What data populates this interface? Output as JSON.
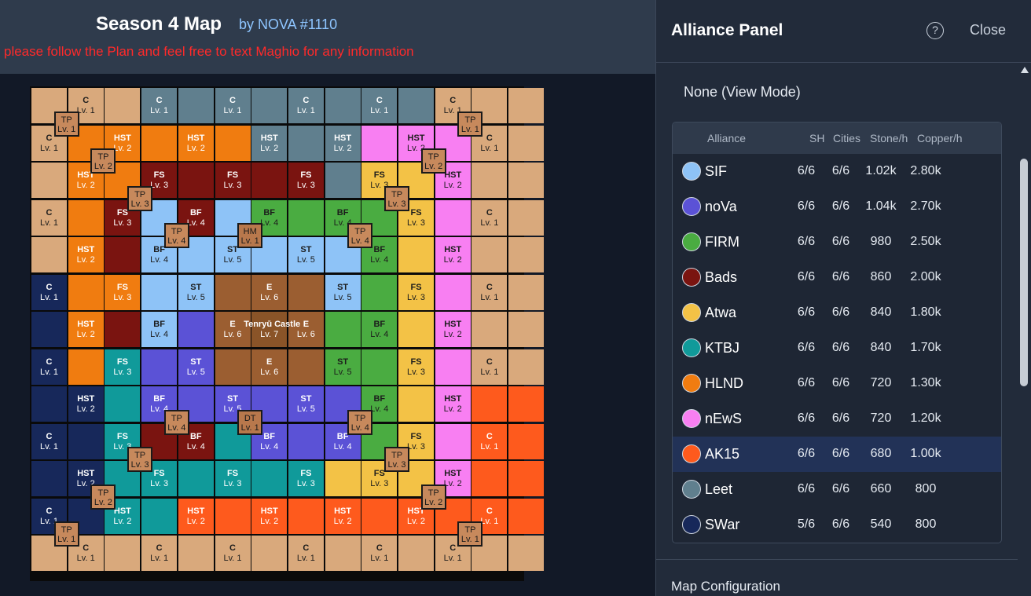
{
  "header": {
    "title": "Season 4 Map",
    "author": "by NOVA #1110",
    "notice": "please follow the Plan and feel free to text Maghio for any information"
  },
  "map": {
    "palette": {
      "C": "#d9a97c",
      "SIF": "#8ec3f7",
      "noVa": "#5b52d6",
      "FIRM": "#4aac41",
      "Bads": "#7a1410",
      "Atwa": "#f3c246",
      "KTBJ": "#109a9a",
      "HLND": "#f07c10",
      "nEwS": "#f87ff2",
      "AK15": "#fe5a1d",
      "Leet": "#607f8e",
      "SWar": "#17285a",
      "Dist": "#9b5e31",
      "Cast": "#8a5428"
    },
    "owners": [
      [
        "C",
        "C",
        "C",
        "Leet",
        "Leet",
        "Leet",
        "Leet",
        "Leet",
        "Leet",
        "Leet",
        "Leet",
        "C",
        "C",
        "C"
      ],
      [
        "C",
        "HLND",
        "HLND",
        "HLND",
        "HLND",
        "HLND",
        "Leet",
        "Leet",
        "Leet",
        "nEwS",
        "nEwS",
        "nEwS",
        "C",
        "C"
      ],
      [
        "C",
        "HLND",
        "HLND",
        "Bads",
        "Bads",
        "Bads",
        "Bads",
        "Bads",
        "Leet",
        "Atwa",
        "Atwa",
        "nEwS",
        "C",
        "C"
      ],
      [
        "C",
        "HLND",
        "Bads",
        "SIF",
        "Bads",
        "SIF",
        "FIRM",
        "FIRM",
        "FIRM",
        "FIRM",
        "Atwa",
        "nEwS",
        "C",
        "C"
      ],
      [
        "C",
        "HLND",
        "Bads",
        "SIF",
        "SIF",
        "SIF",
        "SIF",
        "SIF",
        "SIF",
        "FIRM",
        "Atwa",
        "nEwS",
        "C",
        "C"
      ],
      [
        "SWar",
        "HLND",
        "HLND",
        "SIF",
        "SIF",
        "Dist",
        "Dist",
        "Dist",
        "SIF",
        "FIRM",
        "Atwa",
        "nEwS",
        "C",
        "C"
      ],
      [
        "SWar",
        "HLND",
        "Bads",
        "SIF",
        "noVa",
        "Dist",
        "Cast",
        "Dist",
        "FIRM",
        "FIRM",
        "Atwa",
        "nEwS",
        "C",
        "C"
      ],
      [
        "SWar",
        "HLND",
        "KTBJ",
        "noVa",
        "noVa",
        "Dist",
        "Dist",
        "Dist",
        "FIRM",
        "FIRM",
        "Atwa",
        "nEwS",
        "C",
        "C"
      ],
      [
        "SWar",
        "SWar",
        "KTBJ",
        "noVa",
        "noVa",
        "noVa",
        "noVa",
        "noVa",
        "noVa",
        "FIRM",
        "Atwa",
        "nEwS",
        "AK15",
        "AK15"
      ],
      [
        "SWar",
        "SWar",
        "KTBJ",
        "Bads",
        "Bads",
        "KTBJ",
        "noVa",
        "noVa",
        "noVa",
        "FIRM",
        "Atwa",
        "nEwS",
        "AK15",
        "AK15"
      ],
      [
        "SWar",
        "SWar",
        "KTBJ",
        "KTBJ",
        "KTBJ",
        "KTBJ",
        "KTBJ",
        "KTBJ",
        "Atwa",
        "Atwa",
        "Atwa",
        "nEwS",
        "AK15",
        "AK15"
      ],
      [
        "SWar",
        "SWar",
        "KTBJ",
        "KTBJ",
        "AK15",
        "AK15",
        "AK15",
        "AK15",
        "AK15",
        "AK15",
        "AK15",
        "AK15",
        "AK15",
        "AK15"
      ],
      [
        "C",
        "C",
        "C",
        "C",
        "C",
        "C",
        "C",
        "C",
        "C",
        "C",
        "C",
        "C",
        "C",
        "C"
      ]
    ],
    "labels": [
      {
        "r": 0,
        "c": 1,
        "t": "C",
        "l": "Lv. 1"
      },
      {
        "r": 0,
        "c": 3,
        "t": "C",
        "l": "Lv. 1"
      },
      {
        "r": 0,
        "c": 5,
        "t": "C",
        "l": "Lv. 1"
      },
      {
        "r": 0,
        "c": 7,
        "t": "C",
        "l": "Lv. 1"
      },
      {
        "r": 0,
        "c": 9,
        "t": "C",
        "l": "Lv. 1"
      },
      {
        "r": 0,
        "c": 11,
        "t": "C",
        "l": "Lv. 1"
      },
      {
        "r": 1,
        "c": 0,
        "t": "C",
        "l": "Lv. 1"
      },
      {
        "r": 1,
        "c": 2,
        "t": "HST",
        "l": "Lv. 2"
      },
      {
        "r": 1,
        "c": 4,
        "t": "HST",
        "l": "Lv. 2"
      },
      {
        "r": 1,
        "c": 6,
        "t": "HST",
        "l": "Lv. 2"
      },
      {
        "r": 1,
        "c": 8,
        "t": "HST",
        "l": "Lv. 2"
      },
      {
        "r": 1,
        "c": 10,
        "t": "HST",
        "l": "Lv. 2"
      },
      {
        "r": 1,
        "c": 12,
        "t": "C",
        "l": "Lv. 1"
      },
      {
        "r": 2,
        "c": 1,
        "t": "HST",
        "l": "Lv. 2"
      },
      {
        "r": 2,
        "c": 3,
        "t": "FS",
        "l": "Lv. 3"
      },
      {
        "r": 2,
        "c": 5,
        "t": "FS",
        "l": "Lv. 3"
      },
      {
        "r": 2,
        "c": 7,
        "t": "FS",
        "l": "Lv. 3"
      },
      {
        "r": 2,
        "c": 9,
        "t": "FS",
        "l": "Lv. 3"
      },
      {
        "r": 2,
        "c": 11,
        "t": "HST",
        "l": "Lv. 2"
      },
      {
        "r": 3,
        "c": 0,
        "t": "C",
        "l": "Lv. 1"
      },
      {
        "r": 3,
        "c": 2,
        "t": "FS",
        "l": "Lv. 3"
      },
      {
        "r": 3,
        "c": 4,
        "t": "BF",
        "l": "Lv. 4"
      },
      {
        "r": 3,
        "c": 6,
        "t": "BF",
        "l": "Lv. 4"
      },
      {
        "r": 3,
        "c": 8,
        "t": "BF",
        "l": "Lv. 4"
      },
      {
        "r": 3,
        "c": 10,
        "t": "FS",
        "l": "Lv. 3"
      },
      {
        "r": 3,
        "c": 12,
        "t": "C",
        "l": "Lv. 1"
      },
      {
        "r": 4,
        "c": 1,
        "t": "HST",
        "l": "Lv. 2"
      },
      {
        "r": 4,
        "c": 3,
        "t": "BF",
        "l": "Lv. 4"
      },
      {
        "r": 4,
        "c": 5,
        "t": "ST",
        "l": "Lv. 5"
      },
      {
        "r": 4,
        "c": 7,
        "t": "ST",
        "l": "Lv. 5"
      },
      {
        "r": 4,
        "c": 9,
        "t": "BF",
        "l": "Lv. 4"
      },
      {
        "r": 4,
        "c": 11,
        "t": "HST",
        "l": "Lv. 2"
      },
      {
        "r": 5,
        "c": 0,
        "t": "C",
        "l": "Lv. 1"
      },
      {
        "r": 5,
        "c": 2,
        "t": "FS",
        "l": "Lv. 3"
      },
      {
        "r": 5,
        "c": 4,
        "t": "ST",
        "l": "Lv. 5"
      },
      {
        "r": 5,
        "c": 6,
        "t": "E",
        "l": "Lv. 6"
      },
      {
        "r": 5,
        "c": 8,
        "t": "ST",
        "l": "Lv. 5"
      },
      {
        "r": 5,
        "c": 10,
        "t": "FS",
        "l": "Lv. 3"
      },
      {
        "r": 5,
        "c": 12,
        "t": "C",
        "l": "Lv. 1"
      },
      {
        "r": 6,
        "c": 1,
        "t": "HST",
        "l": "Lv. 2"
      },
      {
        "r": 6,
        "c": 3,
        "t": "BF",
        "l": "Lv. 4"
      },
      {
        "r": 6,
        "c": 5,
        "t": "E",
        "l": "Lv. 6"
      },
      {
        "r": 6,
        "c": 6,
        "t": "Tenryū Castle",
        "l": "Lv. 7"
      },
      {
        "r": 6,
        "c": 7,
        "t": "E",
        "l": "Lv. 6"
      },
      {
        "r": 6,
        "c": 9,
        "t": "BF",
        "l": "Lv. 4"
      },
      {
        "r": 6,
        "c": 11,
        "t": "HST",
        "l": "Lv. 2"
      },
      {
        "r": 7,
        "c": 0,
        "t": "C",
        "l": "Lv. 1"
      },
      {
        "r": 7,
        "c": 2,
        "t": "FS",
        "l": "Lv. 3"
      },
      {
        "r": 7,
        "c": 4,
        "t": "ST",
        "l": "Lv. 5"
      },
      {
        "r": 7,
        "c": 6,
        "t": "E",
        "l": "Lv. 6"
      },
      {
        "r": 7,
        "c": 8,
        "t": "ST",
        "l": "Lv. 5"
      },
      {
        "r": 7,
        "c": 10,
        "t": "FS",
        "l": "Lv. 3"
      },
      {
        "r": 7,
        "c": 12,
        "t": "C",
        "l": "Lv. 1"
      },
      {
        "r": 8,
        "c": 1,
        "t": "HST",
        "l": "Lv. 2"
      },
      {
        "r": 8,
        "c": 3,
        "t": "BF",
        "l": "Lv. 4"
      },
      {
        "r": 8,
        "c": 5,
        "t": "ST",
        "l": "Lv. 5"
      },
      {
        "r": 8,
        "c": 7,
        "t": "ST",
        "l": "Lv. 5"
      },
      {
        "r": 8,
        "c": 9,
        "t": "BF",
        "l": "Lv. 4"
      },
      {
        "r": 8,
        "c": 11,
        "t": "HST",
        "l": "Lv. 2"
      },
      {
        "r": 9,
        "c": 0,
        "t": "C",
        "l": "Lv. 1"
      },
      {
        "r": 9,
        "c": 2,
        "t": "FS",
        "l": "Lv. 3"
      },
      {
        "r": 9,
        "c": 4,
        "t": "BF",
        "l": "Lv. 4"
      },
      {
        "r": 9,
        "c": 6,
        "t": "BF",
        "l": "Lv. 4"
      },
      {
        "r": 9,
        "c": 8,
        "t": "BF",
        "l": "Lv. 4"
      },
      {
        "r": 9,
        "c": 10,
        "t": "FS",
        "l": "Lv. 3"
      },
      {
        "r": 9,
        "c": 12,
        "t": "C",
        "l": "Lv. 1"
      },
      {
        "r": 10,
        "c": 1,
        "t": "HST",
        "l": "Lv. 2"
      },
      {
        "r": 10,
        "c": 3,
        "t": "FS",
        "l": "Lv. 3"
      },
      {
        "r": 10,
        "c": 5,
        "t": "FS",
        "l": "Lv. 3"
      },
      {
        "r": 10,
        "c": 7,
        "t": "FS",
        "l": "Lv. 3"
      },
      {
        "r": 10,
        "c": 9,
        "t": "FS",
        "l": "Lv. 3"
      },
      {
        "r": 10,
        "c": 11,
        "t": "HST",
        "l": "Lv. 2"
      },
      {
        "r": 11,
        "c": 0,
        "t": "C",
        "l": "Lv. 1"
      },
      {
        "r": 11,
        "c": 2,
        "t": "HST",
        "l": "Lv. 2"
      },
      {
        "r": 11,
        "c": 4,
        "t": "HST",
        "l": "Lv. 2"
      },
      {
        "r": 11,
        "c": 6,
        "t": "HST",
        "l": "Lv. 2"
      },
      {
        "r": 11,
        "c": 8,
        "t": "HST",
        "l": "Lv. 2"
      },
      {
        "r": 11,
        "c": 10,
        "t": "HST",
        "l": "Lv. 2"
      },
      {
        "r": 11,
        "c": 12,
        "t": "C",
        "l": "Lv. 1"
      },
      {
        "r": 12,
        "c": 1,
        "t": "C",
        "l": "Lv. 1"
      },
      {
        "r": 12,
        "c": 3,
        "t": "C",
        "l": "Lv. 1"
      },
      {
        "r": 12,
        "c": 5,
        "t": "C",
        "l": "Lv. 1"
      },
      {
        "r": 12,
        "c": 7,
        "t": "C",
        "l": "Lv. 1"
      },
      {
        "r": 12,
        "c": 9,
        "t": "C",
        "l": "Lv. 1"
      },
      {
        "r": 12,
        "c": 11,
        "t": "C",
        "l": "Lv. 1"
      }
    ],
    "badges": [
      {
        "t": "TP",
        "l": "Lv. 1",
        "r": 1,
        "c": 1
      },
      {
        "t": "TP",
        "l": "Lv. 1",
        "r": 1,
        "c": 12
      },
      {
        "t": "TP",
        "l": "Lv. 2",
        "r": 2,
        "c": 2
      },
      {
        "t": "TP",
        "l": "Lv. 2",
        "r": 2,
        "c": 11
      },
      {
        "t": "TP",
        "l": "Lv. 3",
        "r": 3,
        "c": 3
      },
      {
        "t": "TP",
        "l": "Lv. 3",
        "r": 3,
        "c": 10
      },
      {
        "t": "TP",
        "l": "Lv. 4",
        "r": 4,
        "c": 4
      },
      {
        "t": "HM",
        "l": "Lv. 1",
        "r": 4,
        "c": 6
      },
      {
        "t": "TP",
        "l": "Lv. 4",
        "r": 4,
        "c": 9
      },
      {
        "t": "TP",
        "l": "Lv. 4",
        "r": 9,
        "c": 4
      },
      {
        "t": "DT",
        "l": "Lv. 1",
        "r": 9,
        "c": 6
      },
      {
        "t": "TP",
        "l": "Lv. 4",
        "r": 9,
        "c": 9
      },
      {
        "t": "TP",
        "l": "Lv. 3",
        "r": 10,
        "c": 3
      },
      {
        "t": "TP",
        "l": "Lv. 3",
        "r": 10,
        "c": 10
      },
      {
        "t": "TP",
        "l": "Lv. 2",
        "r": 11,
        "c": 2
      },
      {
        "t": "TP",
        "l": "Lv. 2",
        "r": 11,
        "c": 11
      },
      {
        "t": "TP",
        "l": "Lv. 1",
        "r": 12,
        "c": 1
      },
      {
        "t": "TP",
        "l": "Lv. 1",
        "r": 12,
        "c": 12
      }
    ]
  },
  "panel": {
    "title": "Alliance Panel",
    "help_icon": "?",
    "close_label": "Close",
    "mode": "None (View Mode)",
    "columns": {
      "alliance": "Alliance",
      "sh": "SH",
      "cities": "Cities",
      "stone": "Stone/h",
      "copper": "Copper/h"
    },
    "rows": [
      {
        "name": "SIF",
        "color": "#8ec3f7",
        "sh": "6/6",
        "cities": "6/6",
        "stone": "1.02k",
        "copper": "2.80k"
      },
      {
        "name": "noVa",
        "color": "#5b52d6",
        "sh": "6/6",
        "cities": "6/6",
        "stone": "1.04k",
        "copper": "2.70k"
      },
      {
        "name": "FIRM",
        "color": "#4aac41",
        "sh": "6/6",
        "cities": "6/6",
        "stone": "980",
        "copper": "2.50k"
      },
      {
        "name": "Bads",
        "color": "#7a1410",
        "sh": "6/6",
        "cities": "6/6",
        "stone": "860",
        "copper": "2.00k"
      },
      {
        "name": "Atwa",
        "color": "#f3c246",
        "sh": "6/6",
        "cities": "6/6",
        "stone": "840",
        "copper": "1.80k"
      },
      {
        "name": "KTBJ",
        "color": "#109a9a",
        "sh": "6/6",
        "cities": "6/6",
        "stone": "840",
        "copper": "1.70k"
      },
      {
        "name": "HLND",
        "color": "#f07c10",
        "sh": "6/6",
        "cities": "6/6",
        "stone": "720",
        "copper": "1.30k"
      },
      {
        "name": "nEwS",
        "color": "#f87ff2",
        "sh": "6/6",
        "cities": "6/6",
        "stone": "720",
        "copper": "1.20k"
      },
      {
        "name": "AK15",
        "color": "#fe5a1d",
        "sh": "6/6",
        "cities": "6/6",
        "stone": "680",
        "copper": "1.00k",
        "selected": true
      },
      {
        "name": "Leet",
        "color": "#607f8e",
        "sh": "6/6",
        "cities": "6/6",
        "stone": "660",
        "copper": "800"
      },
      {
        "name": "SWar",
        "color": "#17285a",
        "sh": "5/6",
        "cities": "6/6",
        "stone": "540",
        "copper": "800"
      }
    ],
    "config_label": "Map Configuration"
  }
}
